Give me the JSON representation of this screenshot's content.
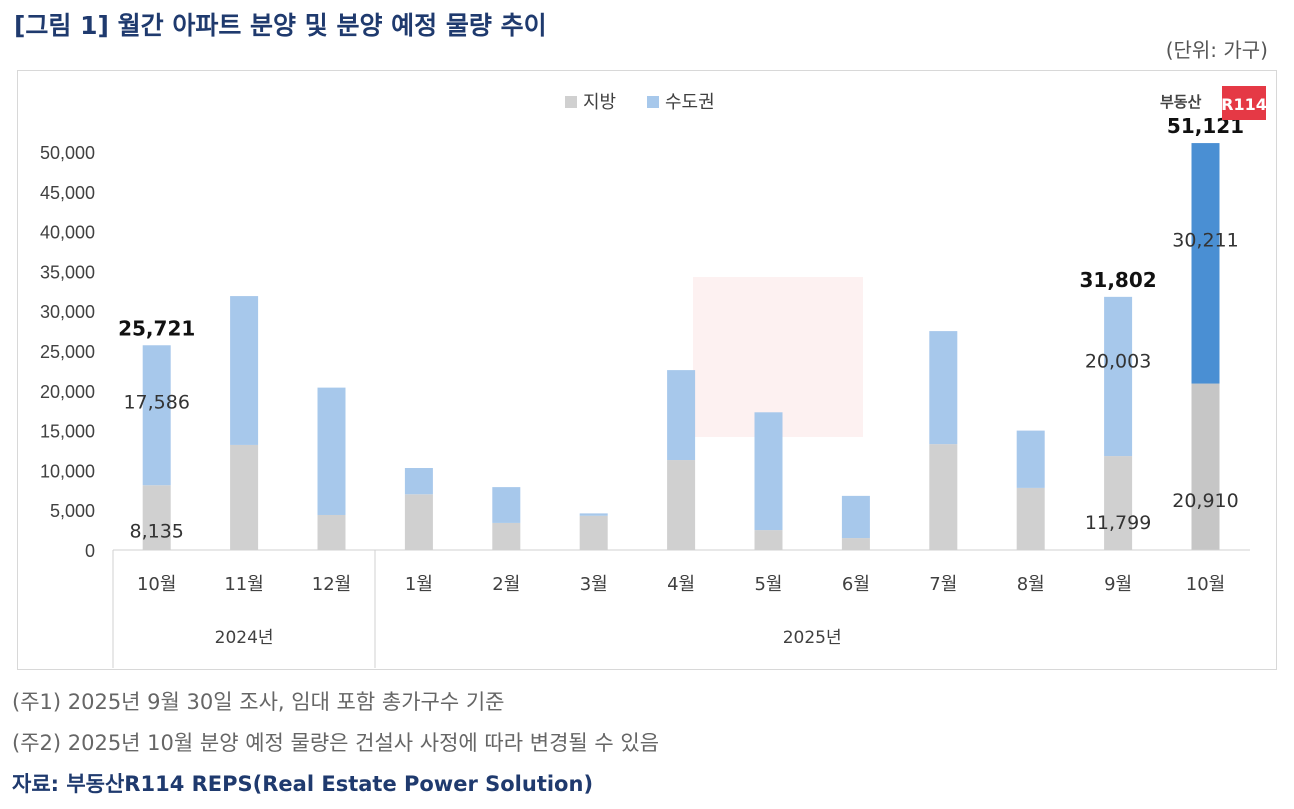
{
  "title": "[그림 1] 월간 아파트 분양 및 분양 예정 물량 추이",
  "unit": "(단위: 가구)",
  "logo_text": "부동산R114",
  "notes": [
    "(주1) 2025년 9월 30일 조사, 임대 포함 총가구수 기준",
    "(주2) 2025년 10월 분양 예정 물량은 건설사 사정에 따라 변경될 수 있음"
  ],
  "source": "자료: 부동산R114 REPS(Real Estate Power Solution)",
  "chart_data": {
    "type": "bar",
    "stacked": true,
    "legend_position": "top",
    "categories": [
      "10월",
      "11월",
      "12월",
      "1월",
      "2월",
      "3월",
      "4월",
      "5월",
      "6월",
      "7월",
      "8월",
      "9월",
      "10월"
    ],
    "groups": [
      {
        "label": "2024년",
        "categories": 3
      },
      {
        "label": "2025년",
        "categories": 10
      }
    ],
    "series": [
      {
        "name": "지방",
        "color": "#d0d0d0",
        "values": [
          8135,
          13200,
          4400,
          7000,
          3400,
          4300,
          11300,
          2500,
          1500,
          13300,
          7800,
          11799,
          20910
        ]
      },
      {
        "name": "수도권",
        "color": "#a7c8eb",
        "values": [
          17586,
          18700,
          16000,
          3300,
          4500,
          300,
          11300,
          14800,
          5300,
          14200,
          7200,
          20003,
          30211
        ]
      }
    ],
    "highlight_colors": {
      "지방": "#c6c6c6",
      "수도권": "#4a8fd3"
    },
    "totals_labels": [
      {
        "index": 0,
        "text": "25,721"
      },
      {
        "index": 11,
        "text": "31,802"
      },
      {
        "index": 12,
        "text": "51,121"
      }
    ],
    "segment_labels": [
      {
        "index": 0,
        "series": 0,
        "text": "8,135"
      },
      {
        "index": 0,
        "series": 1,
        "text": "17,586"
      },
      {
        "index": 11,
        "series": 0,
        "text": "11,799"
      },
      {
        "index": 11,
        "series": 1,
        "text": "20,003"
      },
      {
        "index": 12,
        "series": 0,
        "text": "20,910"
      },
      {
        "index": 12,
        "series": 1,
        "text": "30,211"
      }
    ],
    "ylim": [
      0,
      50000
    ],
    "yticks": [
      "0",
      "5,000",
      "10,000",
      "15,000",
      "20,000",
      "25,000",
      "30,000",
      "35,000",
      "40,000",
      "45,000",
      "50,000"
    ],
    "grid": false
  }
}
